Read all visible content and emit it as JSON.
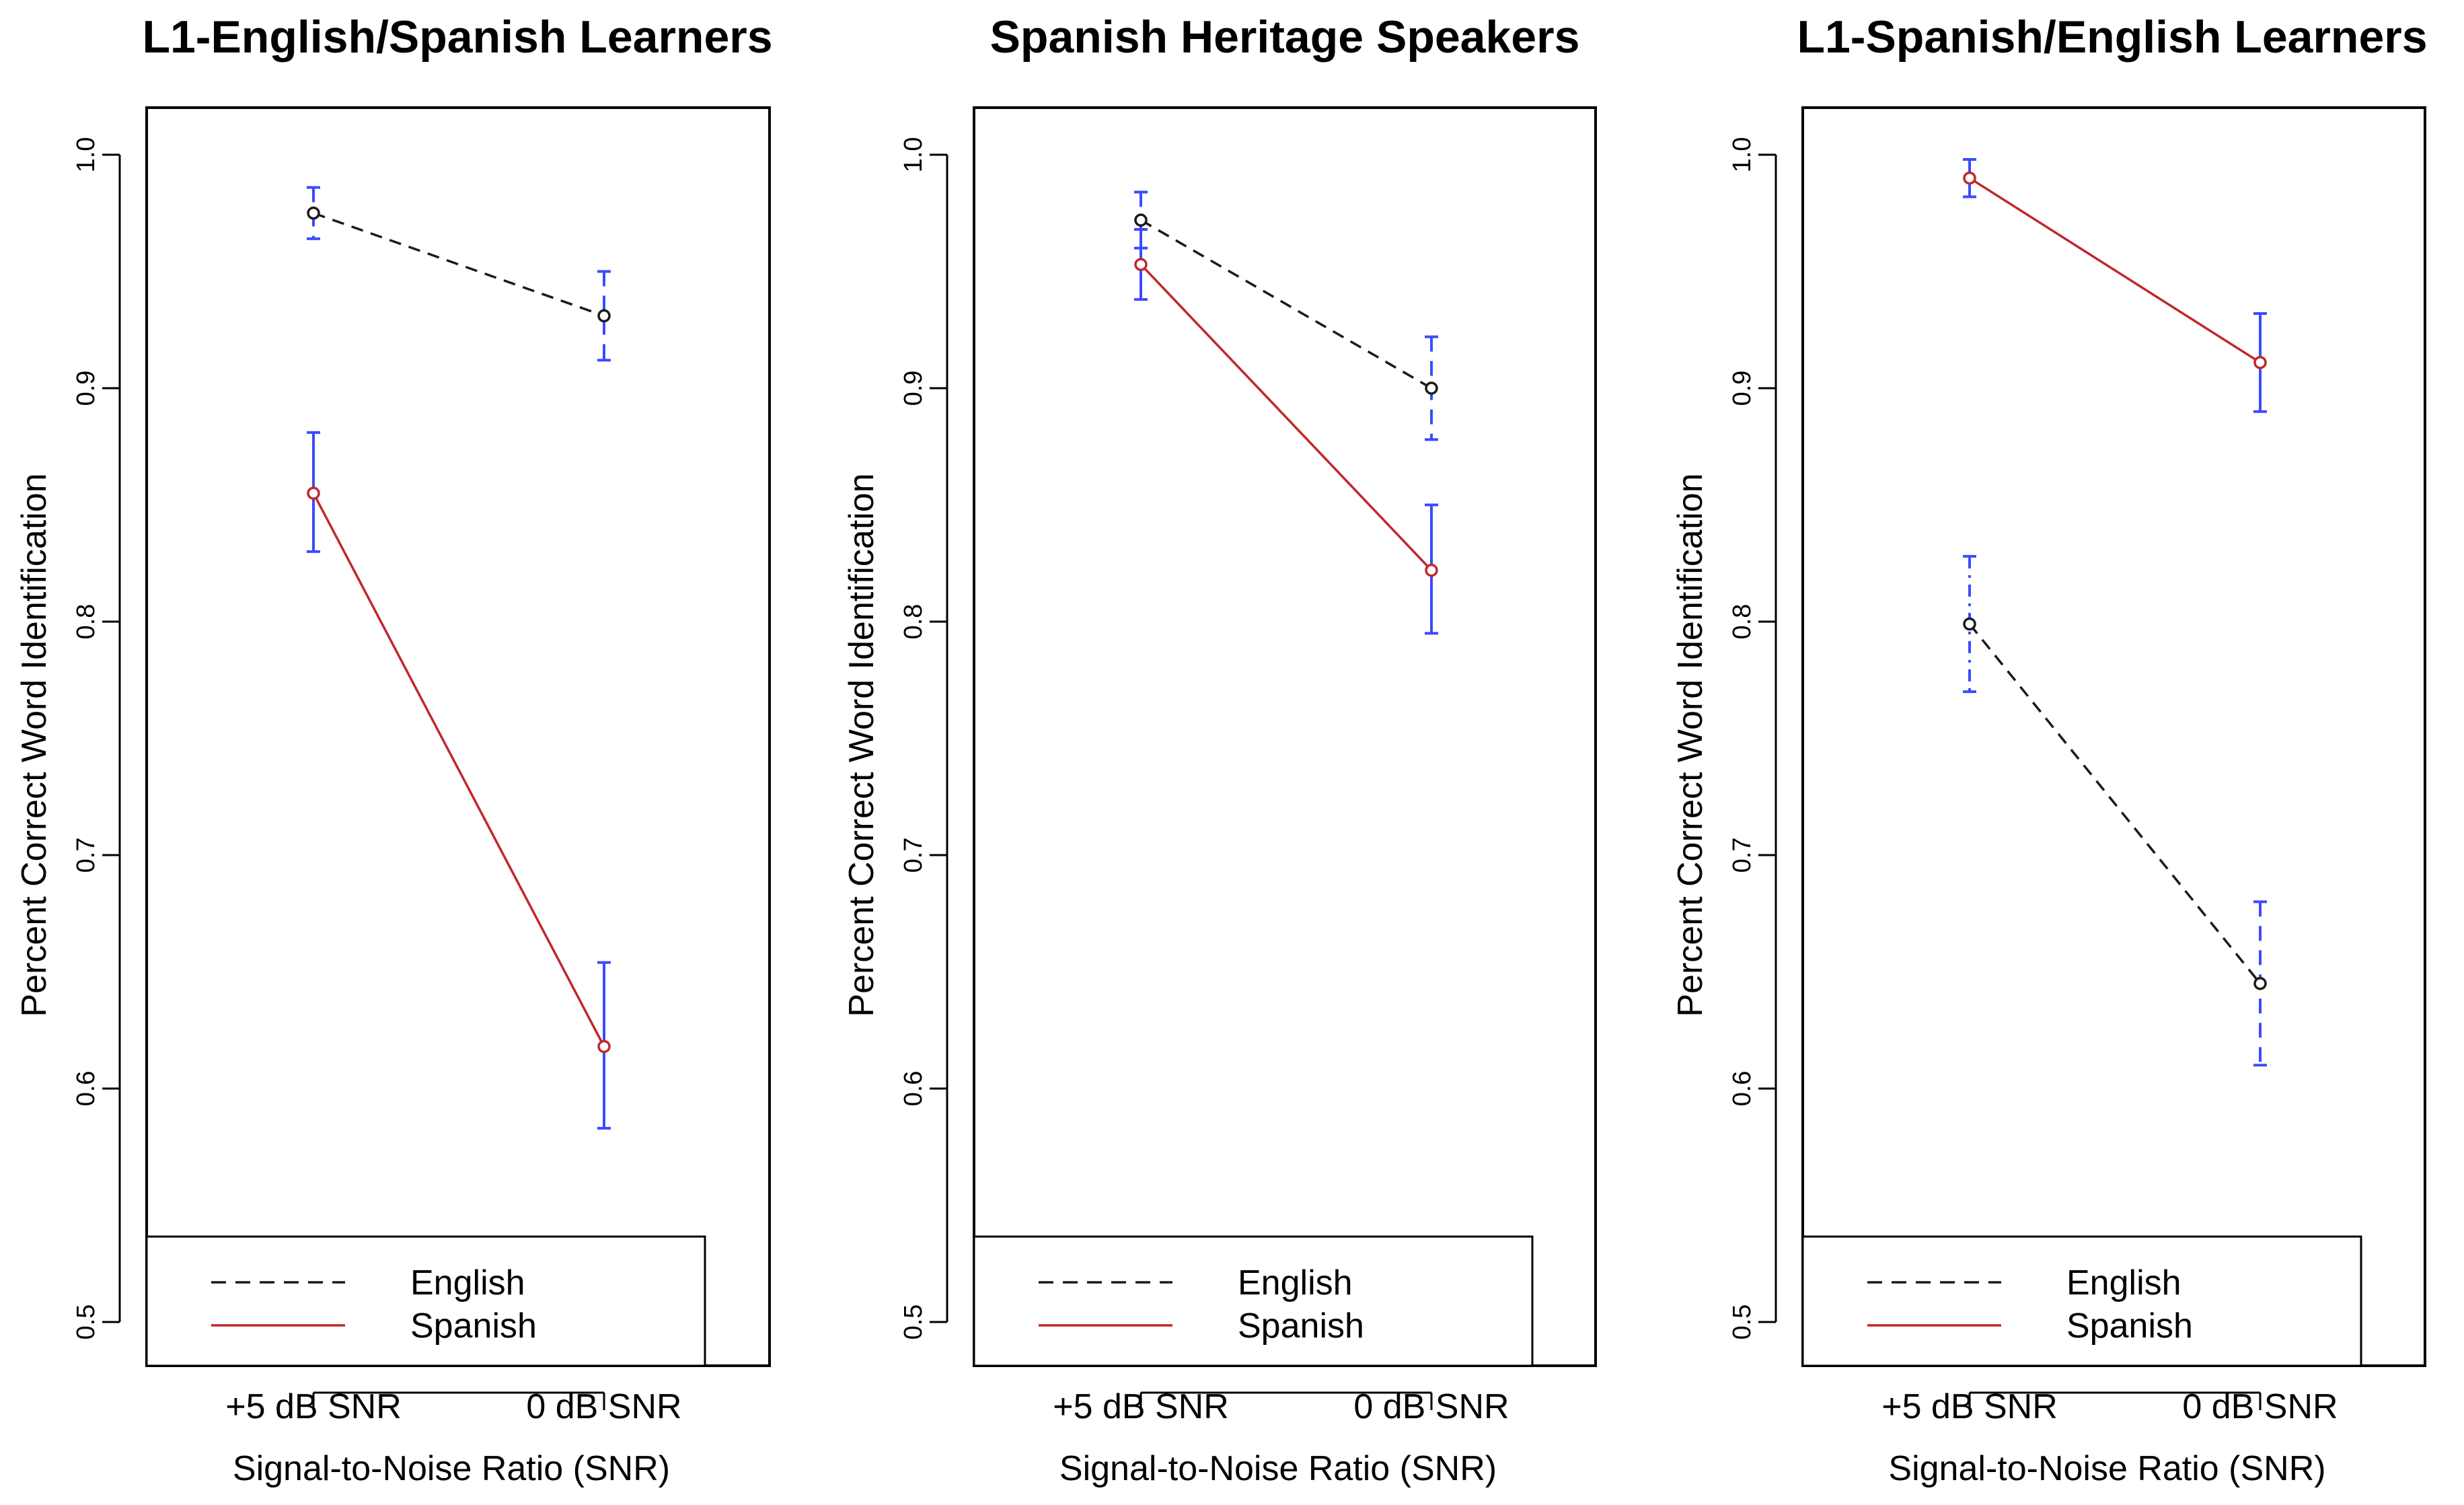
{
  "figure": {
    "colors": {
      "english": "#1a1a1a",
      "spanish": "#c0272d",
      "error_bar": "#3b4bff",
      "frame": "#000000"
    },
    "chart_data": [
      {
        "type": "line",
        "title": "L1-English/Spanish Learners",
        "xlabel": "Signal-to-Noise Ratio (SNR)",
        "ylabel": "Percent Correct Word Identification",
        "categories": [
          "+5 dB SNR",
          "0 dB SNR"
        ],
        "ylim": [
          0.5,
          1.0
        ],
        "yticks": [
          "0.5",
          "0.6",
          "0.7",
          "0.8",
          "0.9",
          "1.0"
        ],
        "legend": {
          "placement": "bottom"
        },
        "series": [
          {
            "name": "English",
            "style": "dashed",
            "values": [
              0.975,
              0.931
            ],
            "err_low": [
              0.964,
              0.912
            ],
            "err_high": [
              0.986,
              0.95
            ]
          },
          {
            "name": "Spanish",
            "style": "solid",
            "values": [
              0.855,
              0.618
            ],
            "err_low": [
              0.83,
              0.583
            ],
            "err_high": [
              0.881,
              0.654
            ]
          }
        ]
      },
      {
        "type": "line",
        "title": "Spanish Heritage Speakers",
        "xlabel": "Signal-to-Noise Ratio (SNR)",
        "ylabel": "Percent Correct Word Identification",
        "categories": [
          "+5 dB SNR",
          "0 dB SNR"
        ],
        "ylim": [
          0.5,
          1.0
        ],
        "yticks": [
          "0.5",
          "0.6",
          "0.7",
          "0.8",
          "0.9",
          "1.0"
        ],
        "legend": {
          "placement": "bottom"
        },
        "series": [
          {
            "name": "English",
            "style": "dashed",
            "values": [
              0.972,
              0.9
            ],
            "err_low": [
              0.96,
              0.878
            ],
            "err_high": [
              0.984,
              0.922
            ]
          },
          {
            "name": "Spanish",
            "style": "solid",
            "values": [
              0.953,
              0.822
            ],
            "err_low": [
              0.938,
              0.795
            ],
            "err_high": [
              0.968,
              0.85
            ]
          }
        ]
      },
      {
        "type": "line",
        "title": "L1-Spanish/English Learners",
        "xlabel": "Signal-to-Noise Ratio (SNR)",
        "ylabel": "Percent Correct Word Identification",
        "categories": [
          "+5 dB SNR",
          "0 dB SNR"
        ],
        "ylim": [
          0.5,
          1.0
        ],
        "yticks": [
          "0.5",
          "0.6",
          "0.7",
          "0.8",
          "0.9",
          "1.0"
        ],
        "legend": {
          "placement": "bottom"
        },
        "series": [
          {
            "name": "English",
            "style": "dashed",
            "values": [
              0.799,
              0.645
            ],
            "err_low": [
              0.77,
              0.61
            ],
            "err_high": [
              0.828,
              0.68
            ]
          },
          {
            "name": "Spanish",
            "style": "solid",
            "values": [
              0.99,
              0.911
            ],
            "err_low": [
              0.982,
              0.89
            ],
            "err_high": [
              0.998,
              0.932
            ]
          }
        ]
      }
    ]
  }
}
